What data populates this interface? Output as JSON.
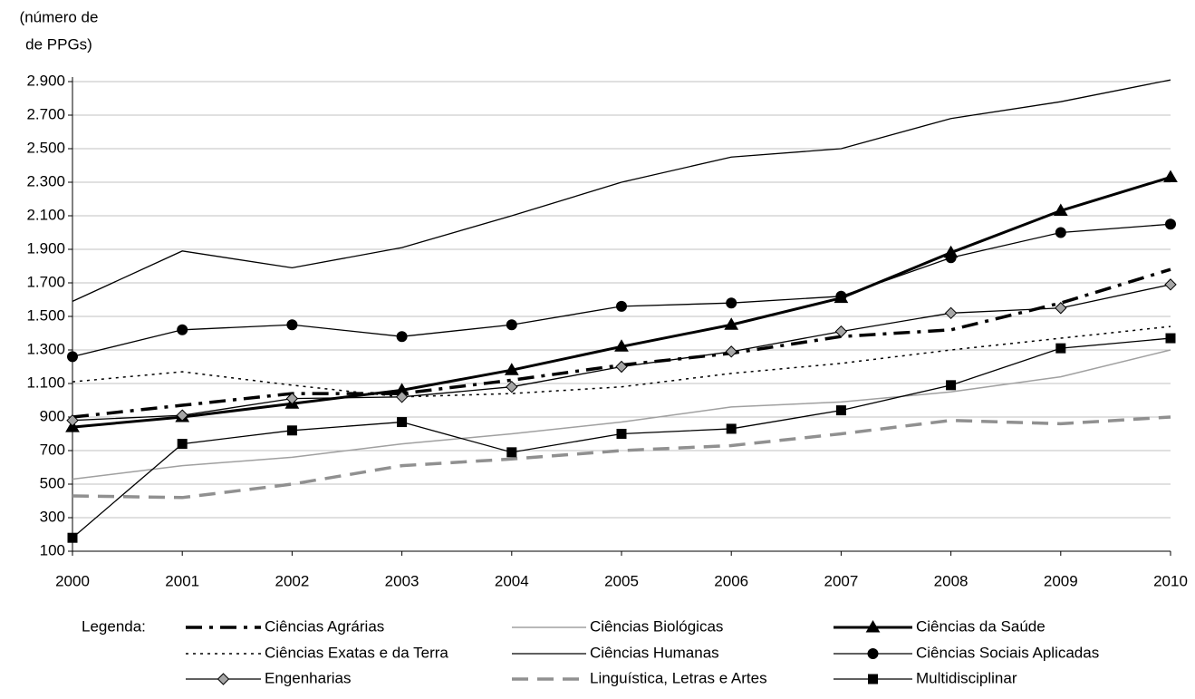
{
  "chart_data": {
    "type": "line",
    "y_label": [
      "(número de",
      "de PPGs)"
    ],
    "legend_title": "Legenda:",
    "x": [
      2000,
      2001,
      2002,
      2003,
      2004,
      2005,
      2006,
      2007,
      2008,
      2009,
      2010
    ],
    "xlim": [
      2000,
      2010
    ],
    "ylim": [
      100,
      2900
    ],
    "yticks": [
      100,
      300,
      500,
      700,
      900,
      {
        "value": 1100,
        "label": "1.100"
      },
      {
        "value": 1300,
        "label": "1.300"
      },
      {
        "value": 1500,
        "label": "1.500"
      },
      {
        "value": 1700,
        "label": "1.700"
      },
      {
        "value": 1900,
        "label": "1.900"
      },
      {
        "value": 2100,
        "label": "2.100"
      },
      {
        "value": 2300,
        "label": "2.300"
      },
      {
        "value": 2500,
        "label": "2.500"
      },
      {
        "value": 2700,
        "label": "2.700"
      },
      {
        "value": 2900,
        "label": "2.900"
      }
    ],
    "grid": true,
    "series": [
      {
        "name": "Ciências Agrárias",
        "color": "#000000",
        "dash": "dashdot",
        "width": 3.5,
        "marker": "none",
        "values": [
          900,
          970,
          1040,
          1040,
          1120,
          1210,
          1280,
          1380,
          1420,
          1580,
          1780
        ]
      },
      {
        "name": "Ciências Biológicas",
        "color": "#a0a0a0",
        "dash": "solid",
        "width": 1.5,
        "marker": "none",
        "values": [
          530,
          610,
          660,
          740,
          800,
          870,
          960,
          990,
          1050,
          1140,
          1300
        ]
      },
      {
        "name": "Ciências da Saúde",
        "color": "#000000",
        "dash": "solid",
        "width": 3,
        "marker": "triangle",
        "values": [
          840,
          900,
          980,
          1060,
          1180,
          1320,
          1450,
          1610,
          1880,
          2130,
          2330
        ]
      },
      {
        "name": "Ciências Exatas e da Terra",
        "color": "#000000",
        "dash": "dotted",
        "width": 1.5,
        "marker": "none",
        "values": [
          1110,
          1170,
          1090,
          1020,
          1040,
          1080,
          1160,
          1220,
          1300,
          1370,
          1440
        ]
      },
      {
        "name": "Ciências Humanas",
        "color": "#000000",
        "dash": "solid",
        "width": 1.3,
        "marker": "none",
        "values": [
          1590,
          1890,
          1790,
          1910,
          2100,
          2300,
          2450,
          2500,
          2680,
          2780,
          2910
        ]
      },
      {
        "name": "Ciências Sociais Aplicadas",
        "color": "#000000",
        "dash": "solid",
        "width": 1.3,
        "marker": "circle",
        "values": [
          1260,
          1420,
          1450,
          1380,
          1450,
          1560,
          1580,
          1620,
          1850,
          2000,
          2050
        ]
      },
      {
        "name": "Engenharias",
        "color": "#000000",
        "dash": "solid",
        "width": 1.3,
        "marker": "diamond",
        "values": [
          880,
          910,
          1010,
          1020,
          1080,
          1200,
          1290,
          1410,
          1520,
          1550,
          1690
        ]
      },
      {
        "name": "Linguística, Letras e Artes",
        "color": "#909090",
        "dash": "dashed",
        "width": 3.5,
        "marker": "none",
        "values": [
          430,
          420,
          500,
          610,
          650,
          700,
          730,
          800,
          880,
          860,
          900
        ]
      },
      {
        "name": "Multidisciplinar",
        "color": "#000000",
        "dash": "solid",
        "width": 1.3,
        "marker": "square",
        "values": [
          180,
          740,
          820,
          870,
          690,
          800,
          830,
          940,
          1090,
          1310,
          1370
        ]
      }
    ]
  }
}
